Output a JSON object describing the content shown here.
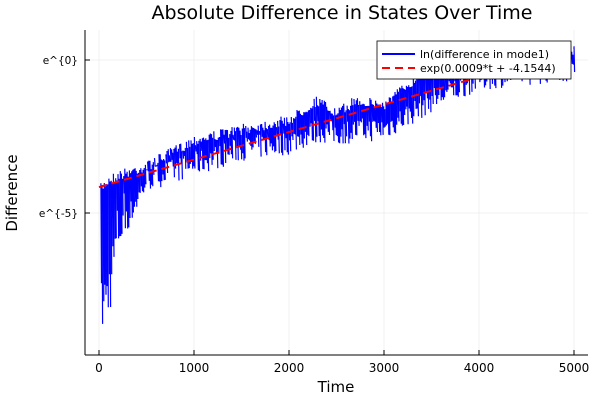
{
  "chart_data": {
    "type": "line",
    "title": "Absolute Difference in States Over Time",
    "xlabel": "Time",
    "ylabel": "Difference",
    "xlim": [
      -150,
      5150
    ],
    "ylim": [
      -9.6,
      1.0
    ],
    "y_scale": "log (natural)",
    "xticks": [
      0,
      1000,
      2000,
      3000,
      4000,
      5000
    ],
    "xtick_labels": [
      "0",
      "1000",
      "2000",
      "3000",
      "4000",
      "5000"
    ],
    "yticks": [
      0,
      -5
    ],
    "ytick_labels": [
      "e^{0}",
      "e^{-5}"
    ],
    "grid": true,
    "legend_position": "top-right",
    "series": [
      {
        "name": "ln(difference in mode1)",
        "color": "#0000ff",
        "style": "solid oscillating",
        "envelope_t": [
          0,
          100,
          200,
          500,
          1000,
          1500,
          2000,
          2300,
          2500,
          2700,
          3000,
          3300,
          3500,
          4000,
          4400,
          5000
        ],
        "upper": [
          -4.1,
          -3.75,
          -3.6,
          -3.3,
          -2.45,
          -2.1,
          -1.8,
          -1.15,
          -1.6,
          -1.15,
          -1.3,
          -0.5,
          0.0,
          0.15,
          0.65,
          0.5
        ],
        "lower": [
          -9.3,
          -8.5,
          -6.5,
          -4.6,
          -4.1,
          -3.6,
          -3.4,
          -3.0,
          -3.1,
          -3.0,
          -2.95,
          -2.4,
          -2.0,
          -1.3,
          -1.15,
          -1.0
        ]
      },
      {
        "name": "exp(0.0009*t + -4.1544)",
        "color": "#ff0000",
        "style": "dashed",
        "slope": 0.0009,
        "intercept": -4.1544,
        "t_range": [
          0,
          5000
        ]
      }
    ]
  }
}
